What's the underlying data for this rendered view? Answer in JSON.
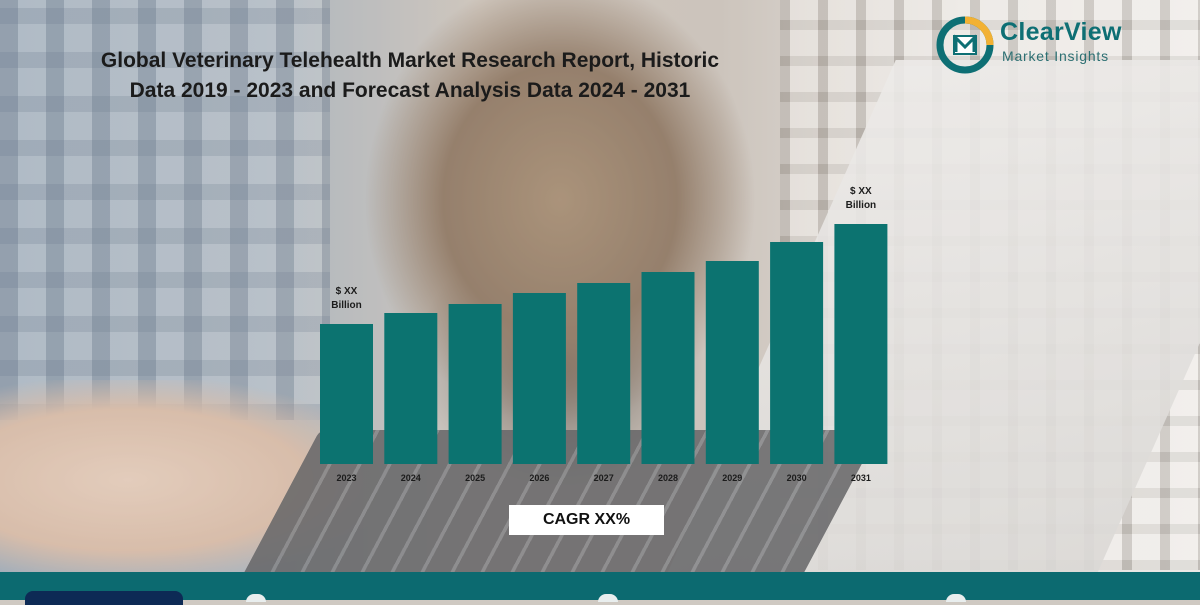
{
  "title_line1": "Global Veterinary Telehealth Market Research Report, Historic",
  "title_line2": "Data 2019 - 2023 and Forecast Analysis Data 2024 - 2031",
  "logo": {
    "brand": "ClearView",
    "tagline": "Market Insights"
  },
  "cagr_label": "CAGR XX%",
  "colors": {
    "bar": "#0c7370",
    "brand": "#0e6f74",
    "footer": "#0c6a70"
  },
  "chart_data": {
    "type": "bar",
    "categories": [
      "2023",
      "2024",
      "2025",
      "2026",
      "2027",
      "2028",
      "2029",
      "2030",
      "2031"
    ],
    "values": [
      140,
      151,
      160,
      171,
      181,
      192,
      203,
      222,
      240
    ],
    "value_labels": [
      {
        "index": 0,
        "lines": [
          "$ XX",
          "Billion"
        ]
      },
      {
        "index": 8,
        "lines": [
          "$ XX",
          "Billion"
        ]
      }
    ],
    "title": "",
    "xlabel": "",
    "ylabel": "",
    "ylim": [
      0,
      240
    ],
    "grid": false,
    "legend": "none"
  }
}
